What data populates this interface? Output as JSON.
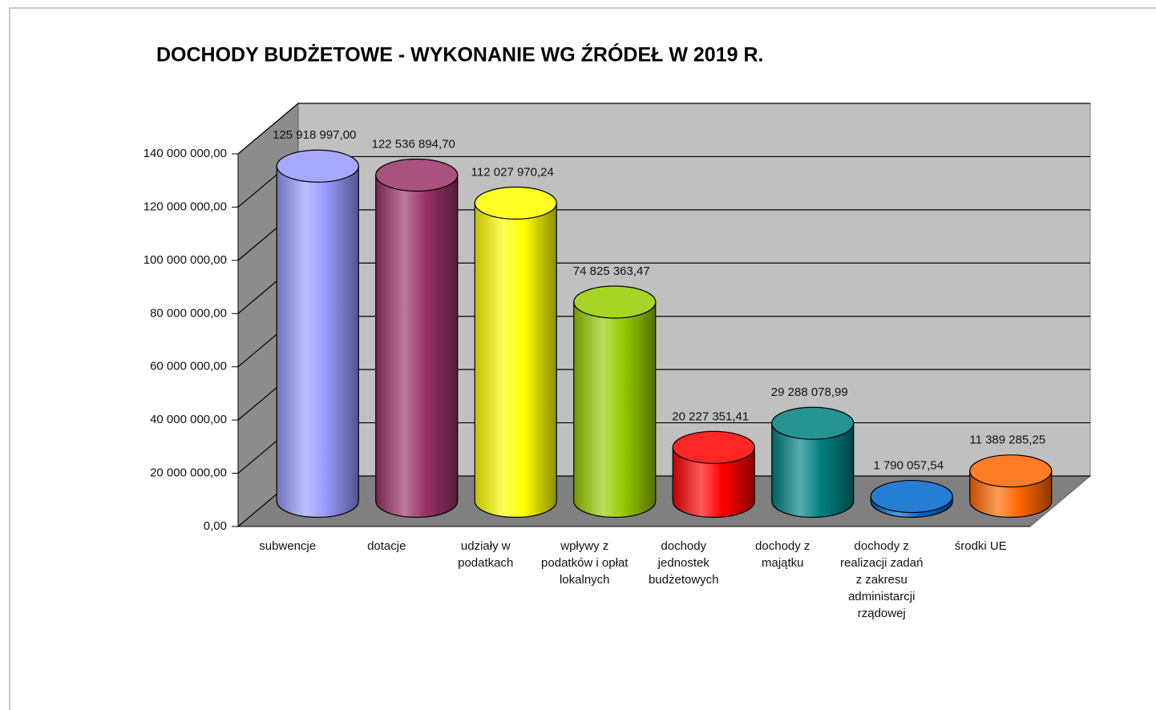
{
  "chart_data": {
    "type": "bar3d",
    "title": "DOCHODY BUDŻETOWE - WYKONANIE WG ŹRÓDEŁ W 2019 R.",
    "categories": [
      "subwencje",
      "dotacje",
      "udziały w podatkach",
      "wpływy z podatków i opłat lokalnych",
      "dochody jednostek budżetowych",
      "dochody z majątku",
      "dochody z realizacji zadań z zakresu administarcji rządowej",
      "środki UE"
    ],
    "values": [
      125918997.0,
      122536894.7,
      112027970.24,
      74825363.47,
      20227351.41,
      29288078.99,
      1790057.54,
      11389285.25
    ],
    "value_labels": [
      "125 918 997,00",
      "122 536 894,70",
      "112 027 970,24",
      "74 825 363,47",
      "20 227 351,41",
      "29 288 078,99",
      "1 790 057,54",
      "11 389 285,25"
    ],
    "colors": [
      "#9999ff",
      "#993366",
      "#ffff00",
      "#99cc00",
      "#ff0000",
      "#008080",
      "#0066cc",
      "#ff6600"
    ],
    "ylim": [
      0,
      140000000
    ],
    "yticks": [
      {
        "value": 0,
        "label": "0,00"
      },
      {
        "value": 20000000,
        "label": "20 000 000,00"
      },
      {
        "value": 40000000,
        "label": "40 000 000,00"
      },
      {
        "value": 60000000,
        "label": "60 000 000,00"
      },
      {
        "value": 80000000,
        "label": "80 000 000,00"
      },
      {
        "value": 100000000,
        "label": "100 000 000,00"
      },
      {
        "value": 120000000,
        "label": "120 000 000,00"
      },
      {
        "value": 140000000,
        "label": "140 000 000,00"
      }
    ],
    "grid": true
  }
}
